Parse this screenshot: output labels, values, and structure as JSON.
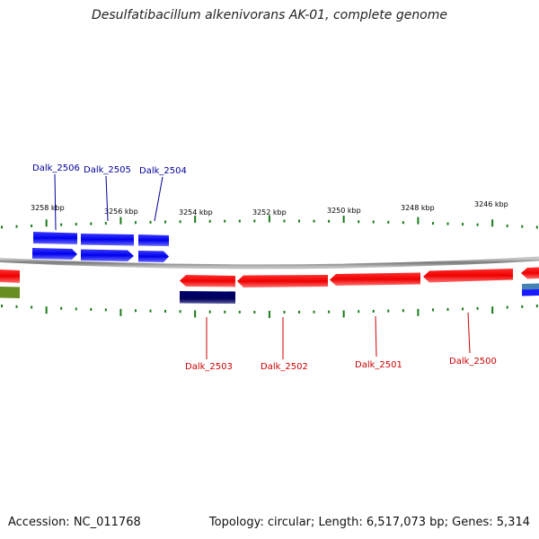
{
  "title": "Desulfatibacillum alkenivorans AK-01, complete genome",
  "footer": {
    "accession": "Accession: NC_011768",
    "summary": "Topology: circular; Length: 6,517,073 bp; Genes: 5,314"
  },
  "colors": {
    "forward_gene": "#1a1aff",
    "reverse_gene": "#ff1a1a",
    "rna_dark": "#000080",
    "tick": "#1a7a1a",
    "backbone": "#8a8a8a",
    "olive": "#6b8e23",
    "steel": "#4682b4"
  },
  "ticks": [
    {
      "label": "3258 kbp"
    },
    {
      "label": "3256 kbp"
    },
    {
      "label": "3254 kbp"
    },
    {
      "label": "3252 kbp"
    },
    {
      "label": "3250 kbp"
    },
    {
      "label": "3248 kbp"
    },
    {
      "label": "3246 kbp"
    }
  ],
  "genes": [
    {
      "label": "Dalk_2506",
      "strand": "forward"
    },
    {
      "label": "Dalk_2505",
      "strand": "forward"
    },
    {
      "label": "Dalk_2504",
      "strand": "forward"
    },
    {
      "label": "Dalk_2503",
      "strand": "reverse"
    },
    {
      "label": "Dalk_2502",
      "strand": "reverse"
    },
    {
      "label": "Dalk_2501",
      "strand": "reverse"
    },
    {
      "label": "Dalk_2500",
      "strand": "reverse"
    }
  ]
}
